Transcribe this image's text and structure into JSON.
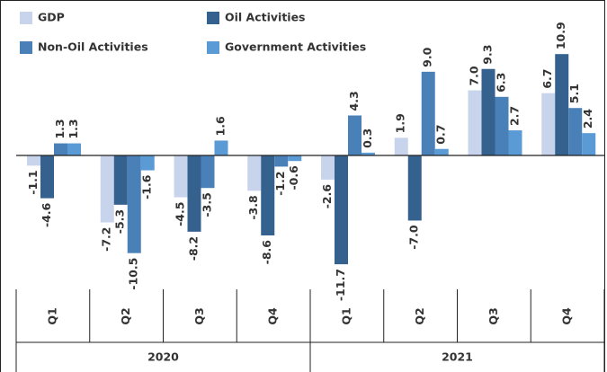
{
  "chart_data": {
    "type": "bar",
    "categories": [
      "Q1",
      "Q2",
      "Q3",
      "Q4",
      "Q1",
      "Q2",
      "Q3",
      "Q4"
    ],
    "groups": [
      "2020",
      "2021"
    ],
    "legend": "top-left",
    "series": [
      {
        "name": "GDP",
        "color": "#c8d4ec",
        "values": [
          -1.1,
          -7.2,
          -4.5,
          -3.8,
          -2.6,
          1.9,
          7.0,
          6.7
        ],
        "value_labels": [
          "-1.1",
          "-7.2",
          "-4.5",
          "-3.8",
          "-2.6",
          "1.9",
          "7.0",
          "6.7"
        ]
      },
      {
        "name": "Oil Activities",
        "color": "#35618f",
        "values": [
          -4.6,
          -5.3,
          -8.2,
          -8.6,
          -11.7,
          -7.0,
          9.3,
          10.9
        ],
        "value_labels": [
          "-4.6",
          "-5.3",
          "-8.2",
          "-8.6",
          "-11.7",
          "-7.0",
          "9.3",
          "10.9"
        ]
      },
      {
        "name": "Non-Oil Activities",
        "color": "#4a80b8",
        "values": [
          1.3,
          -10.5,
          -3.5,
          -1.2,
          4.3,
          9.0,
          6.3,
          5.1
        ],
        "value_labels": [
          "1.3",
          "-10.5",
          "-3.5",
          "-1.2",
          "4.3",
          "9.0",
          "6.3",
          "5.1"
        ]
      },
      {
        "name": "Government Activities",
        "color": "#5b9bd5",
        "values": [
          1.3,
          -1.6,
          1.6,
          -0.6,
          0.3,
          0.7,
          2.7,
          2.4
        ],
        "value_labels": [
          "1.3",
          "-1.6",
          "1.6",
          "-0.6",
          "0.3",
          "0.7",
          "2.7",
          "2.4"
        ]
      }
    ]
  }
}
